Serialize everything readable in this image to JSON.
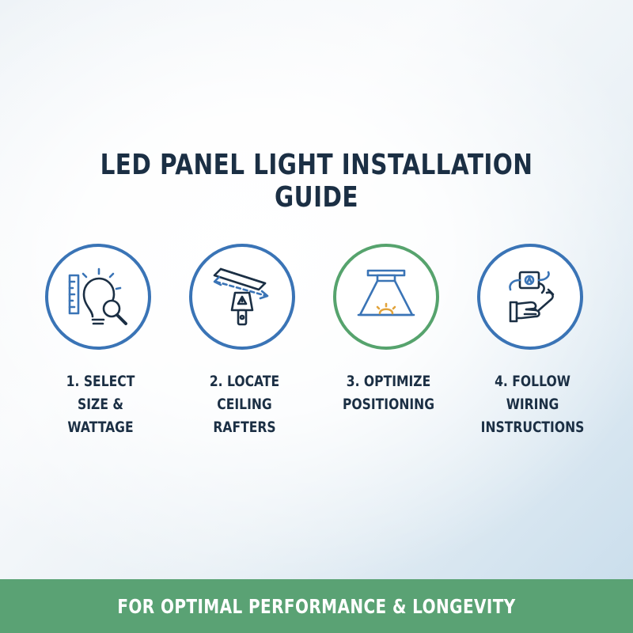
{
  "title": "LED PANEL LIGHT INSTALLATION GUIDE",
  "steps": [
    {
      "label": "1. SELECT\nSIZE &\nWATTAGE",
      "icon": "bulb-ruler-magnifier-icon",
      "border_color": "#3a74b6"
    },
    {
      "label": "2. LOCATE\nCEILING\nRAFTERS",
      "icon": "stud-finder-icon",
      "border_color": "#3a74b6"
    },
    {
      "label": "3. OPTIMIZE\nPOSITIONING",
      "icon": "ceiling-light-beam-icon",
      "border_color": "#56a36d"
    },
    {
      "label": "4. FOLLOW\nWIRING\nINSTRUCTIONS",
      "icon": "wiring-wrench-hand-icon",
      "border_color": "#3a74b6"
    }
  ],
  "banner": {
    "text": "FOR OPTIMAL PERFORMANCE & LONGEVITY",
    "color": "#5aa274"
  },
  "colors": {
    "text": "#1b2f44",
    "blue": "#3a74b6",
    "green": "#56a36d"
  }
}
